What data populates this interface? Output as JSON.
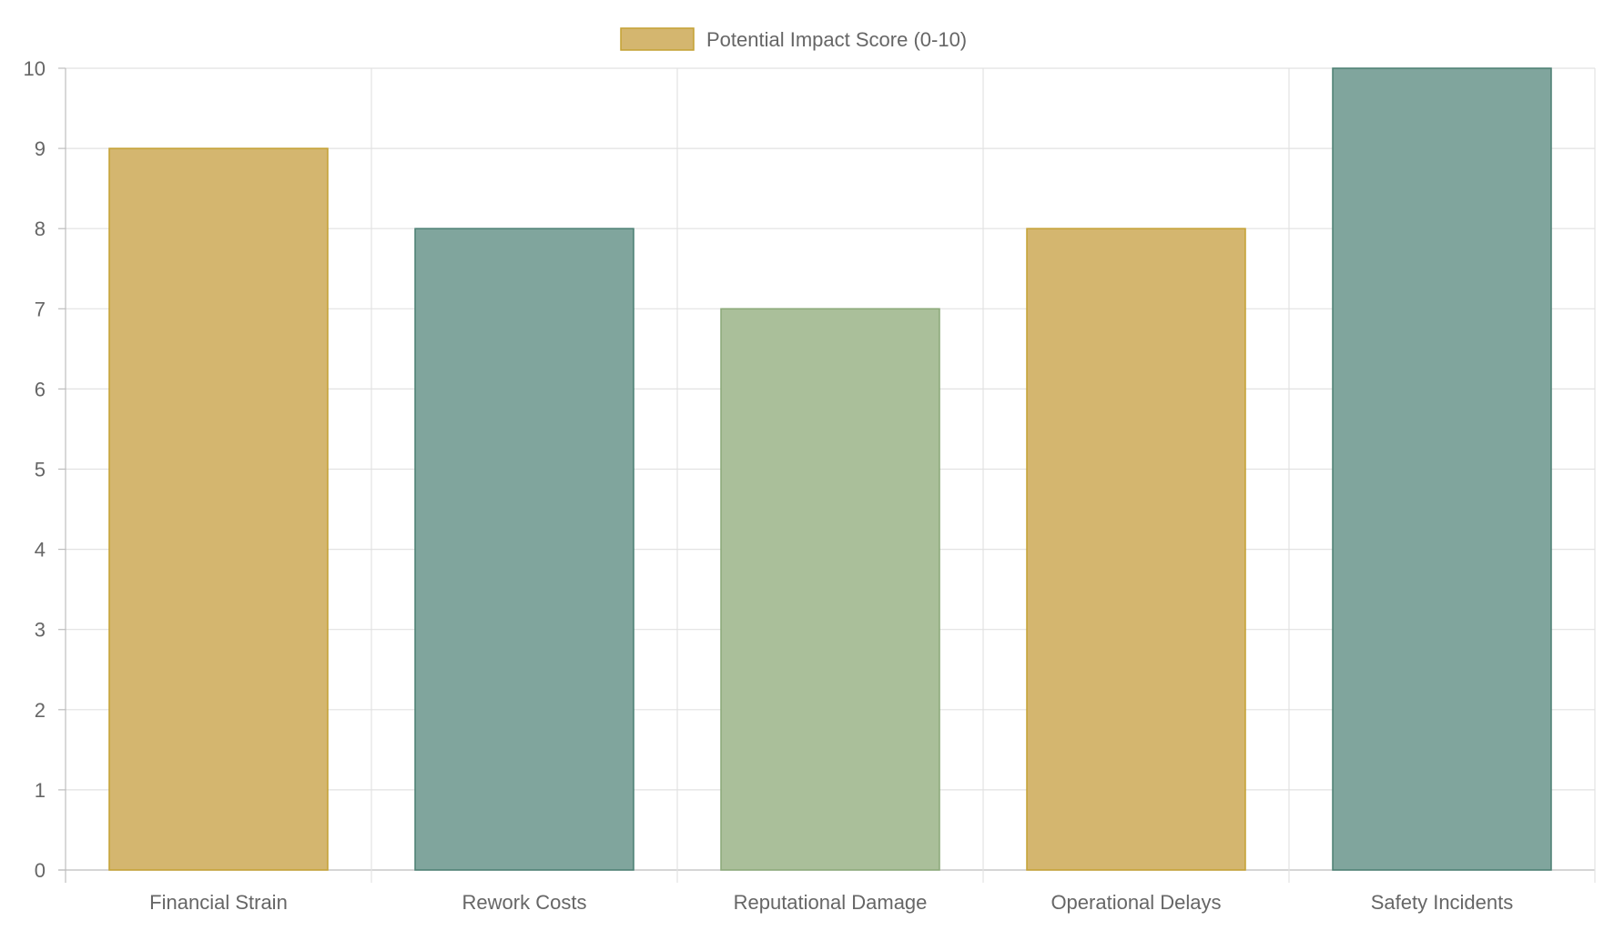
{
  "chart_data": {
    "type": "bar",
    "title": "",
    "xlabel": "",
    "ylabel": "",
    "categories": [
      "Financial Strain",
      "Rework Costs",
      "Reputational Damage",
      "Operational Delays",
      "Safety Incidents"
    ],
    "series": [
      {
        "name": "Potential Impact Score (0-10)",
        "values": [
          9,
          8,
          7,
          8,
          10
        ]
      }
    ],
    "ylim": [
      0,
      10
    ],
    "yticks": [
      "0",
      "1",
      "2",
      "3",
      "4",
      "5",
      "6",
      "7",
      "8",
      "9",
      "10"
    ],
    "grid": true,
    "legend": "top-center",
    "bar_colors": [
      "#d4b66f",
      "#80a59d",
      "#aabf9a",
      "#d4b66f",
      "#80a59d"
    ],
    "bar_border_colors": [
      "#c4a032",
      "#4a7f72",
      "#8aa878",
      "#c4a032",
      "#4a7f72"
    ],
    "legend_color": "#d4b66f",
    "legend_border_color": "#c4a032"
  }
}
